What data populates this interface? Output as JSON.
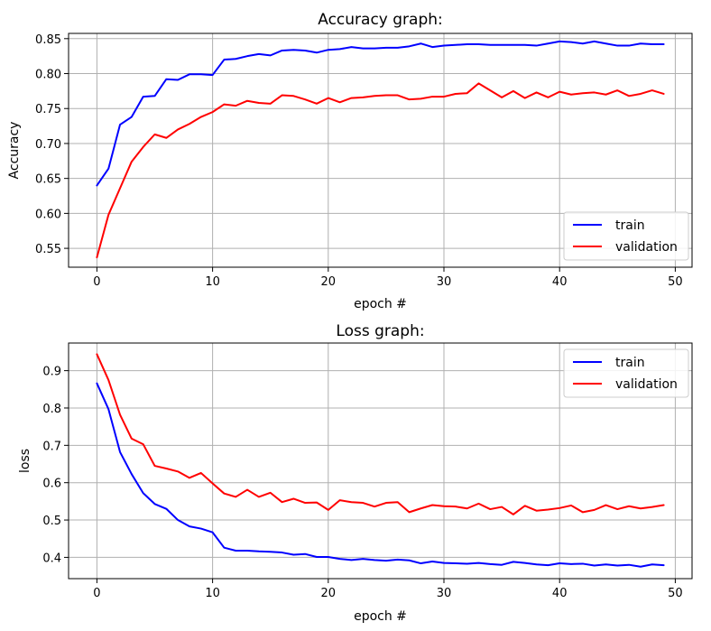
{
  "chart_data": [
    {
      "type": "line",
      "title": "Accuracy graph:",
      "xlabel": "epoch #",
      "ylabel": "Accuracy",
      "xlim": [
        -2.45,
        51.45
      ],
      "ylim": [
        0.523,
        0.8575
      ],
      "xticks": [
        0,
        10,
        20,
        30,
        40,
        50
      ],
      "xtick_labels": [
        "0",
        "10",
        "20",
        "30",
        "40",
        "50"
      ],
      "yticks": [
        0.55,
        0.6,
        0.65,
        0.7,
        0.75,
        0.8,
        0.85
      ],
      "ytick_labels": [
        "0.55",
        "0.60",
        "0.65",
        "0.70",
        "0.75",
        "0.80",
        "0.85"
      ],
      "grid": true,
      "legend_position": "lower-right",
      "x": [
        0,
        1,
        2,
        3,
        4,
        5,
        6,
        7,
        8,
        9,
        10,
        11,
        12,
        13,
        14,
        15,
        16,
        17,
        18,
        19,
        20,
        21,
        22,
        23,
        24,
        25,
        26,
        27,
        28,
        29,
        30,
        31,
        32,
        33,
        34,
        35,
        36,
        37,
        38,
        39,
        40,
        41,
        42,
        43,
        44,
        45,
        46,
        47,
        48,
        49
      ],
      "series": [
        {
          "name": "train",
          "color": "#0000ff",
          "values": [
            0.64,
            0.664,
            0.727,
            0.738,
            0.767,
            0.768,
            0.792,
            0.791,
            0.799,
            0.799,
            0.798,
            0.82,
            0.821,
            0.825,
            0.828,
            0.826,
            0.833,
            0.834,
            0.833,
            0.83,
            0.834,
            0.835,
            0.838,
            0.836,
            0.836,
            0.837,
            0.837,
            0.839,
            0.843,
            0.838,
            0.84,
            0.841,
            0.842,
            0.842,
            0.841,
            0.841,
            0.841,
            0.841,
            0.84,
            0.843,
            0.846,
            0.845,
            0.843,
            0.846,
            0.843,
            0.84,
            0.84,
            0.843,
            0.842,
            0.842
          ]
        },
        {
          "name": "validation",
          "color": "#ff0000",
          "values": [
            0.537,
            0.598,
            0.636,
            0.674,
            0.695,
            0.713,
            0.708,
            0.72,
            0.728,
            0.738,
            0.745,
            0.756,
            0.754,
            0.761,
            0.758,
            0.757,
            0.769,
            0.768,
            0.763,
            0.757,
            0.765,
            0.759,
            0.765,
            0.766,
            0.768,
            0.769,
            0.769,
            0.763,
            0.764,
            0.767,
            0.767,
            0.771,
            0.772,
            0.786,
            0.776,
            0.766,
            0.775,
            0.765,
            0.773,
            0.766,
            0.774,
            0.77,
            0.772,
            0.773,
            0.77,
            0.776,
            0.768,
            0.771,
            0.776,
            0.771
          ]
        }
      ]
    },
    {
      "type": "line",
      "title": "Loss graph:",
      "xlabel": "epoch #",
      "ylabel": "loss",
      "xlim": [
        -2.45,
        51.45
      ],
      "ylim": [
        0.343,
        0.974
      ],
      "xticks": [
        0,
        10,
        20,
        30,
        40,
        50
      ],
      "xtick_labels": [
        "0",
        "10",
        "20",
        "30",
        "40",
        "50"
      ],
      "yticks": [
        0.4,
        0.5,
        0.6,
        0.7,
        0.8,
        0.9
      ],
      "ytick_labels": [
        "0.4",
        "0.5",
        "0.6",
        "0.7",
        "0.8",
        "0.9"
      ],
      "grid": true,
      "legend_position": "upper-right",
      "x": [
        0,
        1,
        2,
        3,
        4,
        5,
        6,
        7,
        8,
        9,
        10,
        11,
        12,
        13,
        14,
        15,
        16,
        17,
        18,
        19,
        20,
        21,
        22,
        23,
        24,
        25,
        26,
        27,
        28,
        29,
        30,
        31,
        32,
        33,
        34,
        35,
        36,
        37,
        38,
        39,
        40,
        41,
        42,
        43,
        44,
        45,
        46,
        47,
        48,
        49
      ],
      "series": [
        {
          "name": "train",
          "color": "#0000ff",
          "values": [
            0.866,
            0.797,
            0.682,
            0.623,
            0.572,
            0.543,
            0.53,
            0.5,
            0.483,
            0.477,
            0.467,
            0.426,
            0.418,
            0.418,
            0.416,
            0.415,
            0.413,
            0.407,
            0.409,
            0.401,
            0.401,
            0.396,
            0.393,
            0.396,
            0.393,
            0.391,
            0.394,
            0.392,
            0.384,
            0.389,
            0.385,
            0.384,
            0.383,
            0.385,
            0.382,
            0.38,
            0.388,
            0.385,
            0.381,
            0.379,
            0.384,
            0.382,
            0.383,
            0.378,
            0.381,
            0.378,
            0.38,
            0.375,
            0.381,
            0.379
          ]
        },
        {
          "name": "validation",
          "color": "#ff0000",
          "values": [
            0.944,
            0.875,
            0.782,
            0.718,
            0.703,
            0.645,
            0.638,
            0.63,
            0.613,
            0.626,
            0.598,
            0.571,
            0.562,
            0.581,
            0.562,
            0.573,
            0.548,
            0.557,
            0.546,
            0.547,
            0.527,
            0.553,
            0.548,
            0.546,
            0.536,
            0.546,
            0.548,
            0.521,
            0.531,
            0.54,
            0.537,
            0.536,
            0.531,
            0.544,
            0.529,
            0.535,
            0.515,
            0.538,
            0.525,
            0.528,
            0.532,
            0.539,
            0.521,
            0.527,
            0.54,
            0.529,
            0.537,
            0.531,
            0.535,
            0.54
          ]
        }
      ]
    }
  ]
}
